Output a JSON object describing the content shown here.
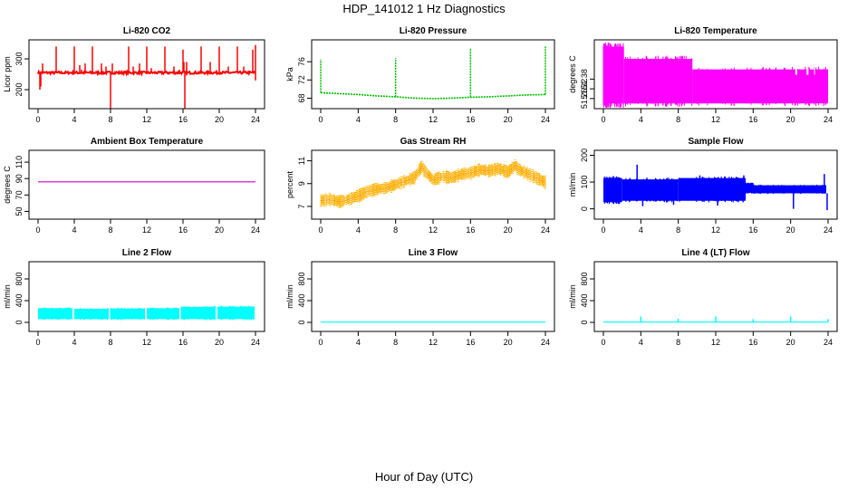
{
  "figure_title": "HDP_141012  1 Hz Diagnostics",
  "xlabel": "Hour of Day (UTC)",
  "chart_data": [
    {
      "type": "line",
      "title": "Li-820 CO2",
      "ylabel": "Licor ppm",
      "color": "#ff0000",
      "xlim": [
        0,
        24
      ],
      "ylim": [
        150,
        350
      ],
      "xticks": [
        "0",
        "4",
        "8",
        "12",
        "16",
        "20",
        "24"
      ],
      "yticks": [
        "200",
        "300"
      ],
      "ytick_values": [
        200,
        300
      ],
      "baseline": 255,
      "noise": 8,
      "spikes": [
        [
          0.2,
          200
        ],
        [
          0.3,
          210
        ],
        [
          0.5,
          285
        ],
        [
          2,
          340
        ],
        [
          2.3,
          262
        ],
        [
          4,
          340
        ],
        [
          4.6,
          280
        ],
        [
          4.8,
          265
        ],
        [
          5.2,
          285
        ],
        [
          6,
          340
        ],
        [
          7,
          285
        ],
        [
          7.5,
          275
        ],
        [
          8,
          140
        ],
        [
          8.2,
          285
        ],
        [
          10,
          340
        ],
        [
          10.5,
          275
        ],
        [
          11.2,
          285
        ],
        [
          12,
          340
        ],
        [
          12.5,
          270
        ],
        [
          14,
          340
        ],
        [
          15,
          275
        ],
        [
          15.6,
          265
        ],
        [
          16,
          330
        ],
        [
          16.1,
          290
        ],
        [
          16.2,
          120
        ],
        [
          16.4,
          290
        ],
        [
          18,
          340
        ],
        [
          19,
          290
        ],
        [
          20,
          340
        ],
        [
          21,
          275
        ],
        [
          22,
          340
        ],
        [
          22.7,
          275
        ],
        [
          23.7,
          330
        ],
        [
          24,
          345
        ],
        [
          24,
          230
        ]
      ]
    },
    {
      "type": "line",
      "title": "Li-820 Pressure",
      "ylabel": "kPa",
      "color": "#00c000",
      "xlim": [
        0,
        24
      ],
      "ylim": [
        66.5,
        80
      ],
      "xticks": [
        "0",
        "4",
        "8",
        "12",
        "16",
        "20",
        "24"
      ],
      "yticks": [
        "68",
        "72",
        "76"
      ],
      "ytick_values": [
        68,
        72,
        76
      ],
      "series": [
        {
          "name": "pressure",
          "x": [
            0,
            2,
            4,
            6,
            8,
            10,
            12,
            14,
            16,
            18,
            20,
            22,
            24
          ],
          "y": [
            69.2,
            69,
            68.8,
            68.5,
            68.3,
            68,
            67.9,
            68,
            68.2,
            68.3,
            68.5,
            68.7,
            68.8
          ]
        }
      ],
      "spikes": [
        [
          0,
          76.5
        ],
        [
          8,
          76.8
        ],
        [
          16,
          79
        ],
        [
          24,
          79.5
        ]
      ]
    },
    {
      "type": "area",
      "title": "Li-820 Temperature",
      "ylabel": "degrees C",
      "color": "#ff00ff",
      "xlim": [
        0,
        24
      ],
      "ylim": [
        51.22,
        51.6
      ],
      "xticks": [
        "0",
        "4",
        "8",
        "12",
        "16",
        "20",
        "24"
      ],
      "yticks": [
        "51.26",
        "51.32",
        "51.38"
      ],
      "ytick_values": [
        51.26,
        51.32,
        51.38
      ],
      "bands": [
        {
          "x0": 0,
          "x1": 2.2,
          "lo": 51.23,
          "hi": 51.58
        },
        {
          "x0": 2.2,
          "x1": 9.5,
          "lo": 51.23,
          "hi": 51.505
        },
        {
          "x0": 9.5,
          "x1": 24,
          "lo": 51.23,
          "hi": 51.44
        }
      ],
      "gaps": [
        [
          20.5,
          20.7
        ],
        [
          21.7,
          21.9
        ],
        [
          22.5,
          22.6
        ]
      ]
    },
    {
      "type": "line",
      "title": "Ambient Box Temperature",
      "ylabel": "degrees C",
      "color": "#cc00cc",
      "xlim": [
        0,
        24
      ],
      "ylim": [
        45,
        120
      ],
      "xticks": [
        "0",
        "4",
        "8",
        "12",
        "16",
        "20",
        "24"
      ],
      "yticks": [
        "50",
        "70",
        "90",
        "110"
      ],
      "ytick_values": [
        50,
        70,
        90,
        110
      ],
      "series": [
        {
          "name": "temperature",
          "x": [
            0,
            24
          ],
          "y": [
            86,
            86
          ]
        }
      ]
    },
    {
      "type": "area",
      "title": "Gas Stream RH",
      "ylabel": "percent",
      "color": "#ffb000",
      "xlim": [
        0,
        24
      ],
      "ylim": [
        6.2,
        11.6
      ],
      "xticks": [
        "0",
        "4",
        "8",
        "12",
        "16",
        "20",
        "24"
      ],
      "yticks": [
        "7",
        "9",
        "11"
      ],
      "ytick_values": [
        7,
        9,
        11
      ],
      "series": [
        {
          "name": "rh",
          "x": [
            0,
            1,
            2,
            3,
            4,
            5,
            6,
            7,
            8,
            9,
            10,
            10.8,
            11,
            12,
            13,
            14,
            15,
            16,
            17,
            18,
            19,
            20,
            20.8,
            21,
            22,
            23,
            24
          ],
          "y": [
            7.5,
            7.6,
            7.4,
            7.6,
            7.9,
            8.3,
            8.5,
            8.6,
            8.9,
            9.2,
            9.5,
            10.5,
            10.2,
            9.3,
            9.6,
            9.5,
            9.8,
            9.9,
            10.2,
            10.1,
            10.3,
            10,
            10.6,
            10.3,
            9.9,
            9.5,
            9.1
          ]
        }
      ],
      "band_halfwidth": 0.6
    },
    {
      "type": "area",
      "title": "Sample Flow",
      "ylabel": "ml/min",
      "color": "#0000ff",
      "xlim": [
        0,
        24
      ],
      "ylim": [
        -25,
        205
      ],
      "xticks": [
        "0",
        "4",
        "8",
        "12",
        "16",
        "20",
        "24"
      ],
      "yticks": [
        "0",
        "100",
        "200"
      ],
      "ytick_values": [
        0,
        100,
        200
      ],
      "bands": [
        {
          "x0": 0,
          "x1": 2,
          "lo": 25,
          "hi": 115
        },
        {
          "x0": 2,
          "x1": 8,
          "lo": 30,
          "hi": 110
        },
        {
          "x0": 8,
          "x1": 15.2,
          "lo": 30,
          "hi": 115
        },
        {
          "x0": 15.2,
          "x1": 16,
          "lo": 60,
          "hi": 95
        },
        {
          "x0": 16,
          "x1": 23.8,
          "lo": 58,
          "hi": 88
        }
      ],
      "spikes": [
        [
          3.6,
          165
        ],
        [
          4.2,
          10
        ],
        [
          7.5,
          15
        ],
        [
          10.3,
          125
        ],
        [
          12.2,
          12
        ],
        [
          15,
          125
        ],
        [
          20.3,
          0
        ],
        [
          23.6,
          130
        ],
        [
          23.9,
          -5
        ]
      ]
    },
    {
      "type": "area",
      "title": "Line 2 Flow",
      "ylabel": "ml/min",
      "color": "#00ffff",
      "xlim": [
        0,
        24
      ],
      "ylim": [
        -100,
        1050
      ],
      "xticks": [
        "0",
        "4",
        "8",
        "12",
        "16",
        "20",
        "24"
      ],
      "yticks": [
        "0",
        "400",
        "800"
      ],
      "ytick_values": [
        0,
        400,
        800
      ],
      "bands": [
        {
          "x0": 0,
          "x1": 3.8,
          "lo": 60,
          "hi": 260
        },
        {
          "x0": 4,
          "x1": 7.8,
          "lo": 60,
          "hi": 250
        },
        {
          "x0": 8,
          "x1": 11.8,
          "lo": 60,
          "hi": 255
        },
        {
          "x0": 12,
          "x1": 15.6,
          "lo": 60,
          "hi": 260
        },
        {
          "x0": 15.8,
          "x1": 19.6,
          "lo": 60,
          "hi": 285
        },
        {
          "x0": 19.8,
          "x1": 23.9,
          "lo": 60,
          "hi": 290
        }
      ]
    },
    {
      "type": "line",
      "title": "Line 3 Flow",
      "ylabel": "ml/min",
      "color": "#00ffff",
      "xlim": [
        0,
        24
      ],
      "ylim": [
        -100,
        1050
      ],
      "xticks": [
        "0",
        "4",
        "8",
        "12",
        "16",
        "20",
        "24"
      ],
      "yticks": [
        "0",
        "400",
        "800"
      ],
      "ytick_values": [
        0,
        400,
        800
      ],
      "series": [
        {
          "name": "flow",
          "x": [
            0,
            24
          ],
          "y": [
            5,
            5
          ]
        }
      ]
    },
    {
      "type": "line",
      "title": "Line 4 (LT) Flow",
      "ylabel": "ml/min",
      "color": "#00ffff",
      "xlim": [
        0,
        24
      ],
      "ylim": [
        -100,
        1050
      ],
      "xticks": [
        "0",
        "4",
        "8",
        "12",
        "16",
        "20",
        "24"
      ],
      "yticks": [
        "0",
        "400",
        "800"
      ],
      "ytick_values": [
        0,
        400,
        800
      ],
      "series": [
        {
          "name": "flow",
          "x": [
            0,
            24
          ],
          "y": [
            5,
            5
          ]
        }
      ],
      "spikes": [
        [
          4,
          110
        ],
        [
          8,
          65
        ],
        [
          12,
          110
        ],
        [
          16,
          60
        ],
        [
          20,
          110
        ],
        [
          24,
          60
        ]
      ]
    }
  ]
}
